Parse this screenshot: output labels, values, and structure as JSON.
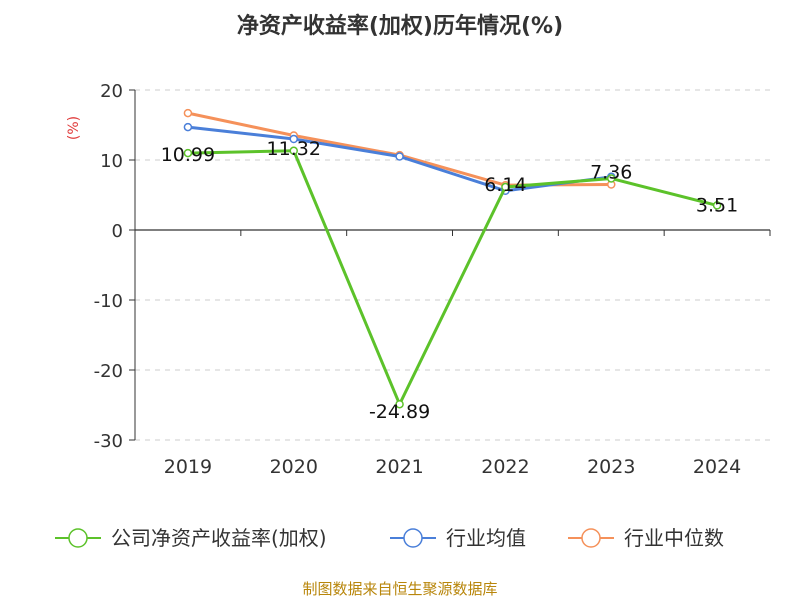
{
  "chart_data": {
    "type": "line",
    "title": "净资产收益率(加权)历年情况(%)",
    "ylabel": "(%)",
    "xlabel": "",
    "categories": [
      "2019",
      "2020",
      "2021",
      "2022",
      "2023",
      "2024"
    ],
    "ylim": [
      -30,
      20
    ],
    "yticks": [
      20,
      10,
      0,
      -10,
      -20,
      -30
    ],
    "grid": "horizontal-dashed",
    "legend_position": "bottom",
    "series": [
      {
        "name": "公司净资产收益率(加权)",
        "color": "#5cc22a",
        "values": [
          10.99,
          11.32,
          -24.89,
          6.14,
          7.36,
          3.51
        ],
        "labels": [
          "10.99",
          "11.32",
          "-24.89",
          "6.14",
          "7.36",
          "3.51"
        ]
      },
      {
        "name": "行业均值",
        "color": "#4a7fd9",
        "values": [
          14.7,
          13.0,
          10.5,
          5.6,
          7.6,
          null
        ]
      },
      {
        "name": "行业中位数",
        "color": "#f5915a",
        "values": [
          16.7,
          13.5,
          10.7,
          6.4,
          6.5,
          null
        ]
      }
    ]
  },
  "footer": {
    "source": "制图数据来自恒生聚源数据库"
  }
}
